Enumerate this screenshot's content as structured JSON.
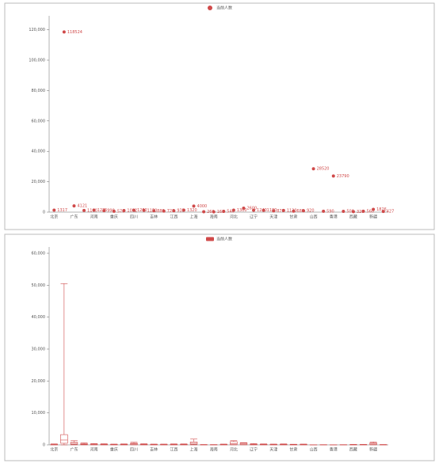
{
  "chart_data": [
    {
      "type": "scatter",
      "categories": [
        "北京",
        null,
        "广东",
        null,
        "河南",
        null,
        "重庆",
        null,
        "四川",
        null,
        "吉林",
        null,
        "江西",
        null,
        "上海",
        null,
        "海南",
        null,
        "河北",
        null,
        "辽宁",
        null,
        "天津",
        null,
        "甘肃",
        null,
        "山西",
        null,
        "香港",
        null,
        "西藏",
        null,
        "新疆",
        null
      ],
      "series": [
        {
          "name": "当前人数",
          "color": "#d04a4a",
          "values": [
            1317,
            118524,
            4121,
            1100,
            1275,
            990,
            576,
            1012,
            1260,
            1150,
            880,
            720,
            935,
            1320,
            4000,
            260,
            168,
            540,
            1300,
            2600,
            1240,
            1180,
            870,
            1120,
            680,
            920,
            28520,
            590,
            23790,
            500,
            320,
            560,
            1826,
            427
          ]
        }
      ],
      "ylim": [
        0,
        125000
      ],
      "yticks": [
        0,
        {
          "value": 20000,
          "label": "20,000"
        },
        {
          "value": 40000,
          "label": "40,000"
        },
        {
          "value": 60000,
          "label": "60,000"
        },
        {
          "value": 80000,
          "label": "80,000"
        },
        {
          "value": 100000,
          "label": "100,000"
        },
        {
          "value": 120000,
          "label": "120,000"
        }
      ]
    },
    {
      "type": "boxplot",
      "categories": [
        "北京",
        null,
        "广东",
        null,
        "河南",
        null,
        "重庆",
        null,
        "四川",
        null,
        "吉林",
        null,
        "江西",
        null,
        "上海",
        null,
        "海南",
        null,
        "河北",
        null,
        "辽宁",
        null,
        "天津",
        null,
        "甘肃",
        null,
        "山西",
        null,
        "香港",
        null,
        "西藏",
        null,
        "新疆",
        null
      ],
      "series": [
        {
          "name": "当前人数",
          "color": "#d04a4a",
          "values": [
            [
              0,
              20,
              60,
              150,
              300
            ],
            [
              0,
              500,
              1500,
              3200,
              50500
            ],
            [
              0,
              200,
              500,
              800,
              1300
            ],
            [
              0,
              80,
              200,
              350,
              600
            ],
            [
              0,
              50,
              120,
              250,
              400
            ],
            [
              0,
              40,
              100,
              200,
              350
            ],
            [
              0,
              30,
              80,
              150,
              250
            ],
            [
              0,
              30,
              90,
              170,
              300
            ],
            [
              0,
              100,
              300,
              500,
              800
            ],
            [
              0,
              40,
              100,
              200,
              350
            ],
            [
              0,
              30,
              80,
              150,
              250
            ],
            [
              0,
              30,
              70,
              140,
              250
            ],
            [
              0,
              30,
              90,
              160,
              300
            ],
            [
              0,
              40,
              100,
              180,
              300
            ],
            [
              0,
              200,
              500,
              900,
              1800
            ],
            [
              0,
              10,
              30,
              60,
              120
            ],
            [
              0,
              10,
              30,
              60,
              100
            ],
            [
              0,
              30,
              80,
              150,
              250
            ],
            [
              0,
              100,
              400,
              1000,
              1300
            ],
            [
              0,
              100,
              300,
              600,
              700
            ],
            [
              0,
              50,
              120,
              220,
              400
            ],
            [
              0,
              40,
              100,
              180,
              300
            ],
            [
              0,
              30,
              80,
              150,
              250
            ],
            [
              0,
              40,
              100,
              180,
              300
            ],
            [
              0,
              20,
              50,
              100,
              200
            ],
            [
              0,
              30,
              80,
              150,
              250
            ],
            [
              0,
              5,
              10,
              20,
              40
            ],
            [
              0,
              10,
              20,
              40,
              80
            ],
            [
              0,
              5,
              10,
              20,
              40
            ],
            [
              0,
              10,
              20,
              40,
              80
            ],
            [
              0,
              20,
              40,
              80,
              150
            ],
            [
              0,
              20,
              50,
              90,
              150
            ],
            [
              0,
              100,
              300,
              600,
              900
            ],
            [
              0,
              10,
              30,
              60,
              120
            ]
          ]
        }
      ],
      "ylim": [
        0,
        60000
      ],
      "yticks": [
        0,
        {
          "value": 10000,
          "label": "10,000"
        },
        {
          "value": 20000,
          "label": "20,000"
        },
        {
          "value": 30000,
          "label": "30,000"
        },
        {
          "value": 40000,
          "label": "40,000"
        },
        {
          "value": 50000,
          "label": "50,000"
        },
        {
          "value": 60000,
          "label": "60,000"
        }
      ]
    }
  ]
}
